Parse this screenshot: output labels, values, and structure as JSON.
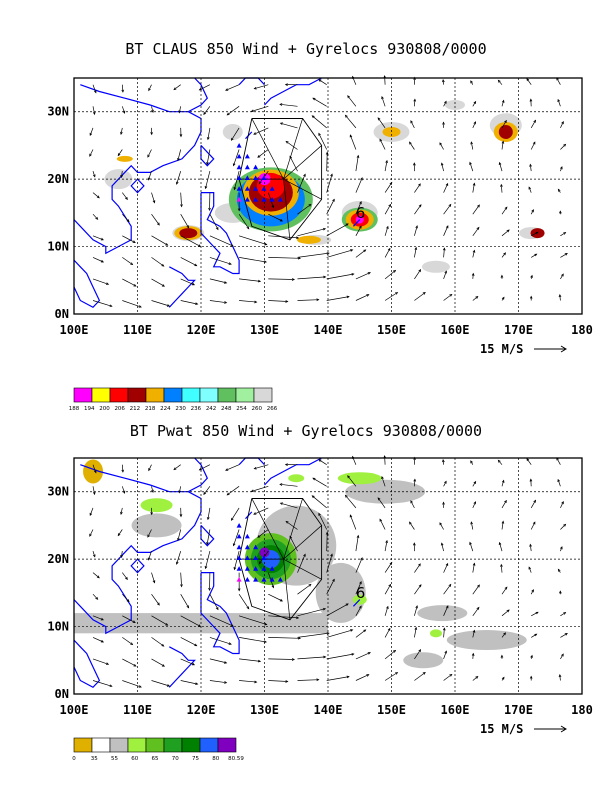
{
  "panels": [
    {
      "id": "claus",
      "title": "BT CLAUS 850 Wind + Gyrelocs 930808/0000",
      "colorbar": {
        "labels": [
          "188",
          "194",
          "200",
          "206",
          "212",
          "218",
          "224",
          "230",
          "236",
          "242",
          "248",
          "254",
          "260",
          "266"
        ],
        "colors": [
          "#ff00ff",
          "#ffff00",
          "#ff0000",
          "#a00000",
          "#f0b000",
          "#0080ff",
          "#40ffff",
          "#80ffff",
          "#60c060",
          "#a0f0a0",
          "#d8d8d8"
        ]
      }
    },
    {
      "id": "pwat",
      "title": "BT Pwat 850 Wind + Gyrelocs 930808/0000",
      "colorbar": {
        "labels": [
          "0",
          "35",
          "55",
          "60",
          "65",
          "70",
          "75",
          "80",
          "80.59"
        ],
        "colors": [
          "#e0b000",
          "#ffffff",
          "#c0c0c0",
          "#a0f040",
          "#60c020",
          "#20a020",
          "#008000",
          "#2060ff",
          "#8000c0"
        ]
      }
    }
  ],
  "map": {
    "lon_labels": [
      "100E",
      "110E",
      "120E",
      "130E",
      "140E",
      "150E",
      "160E",
      "170E",
      "180"
    ],
    "lat_labels": [
      "30N",
      "20N",
      "10N",
      "0N"
    ],
    "lon_range": [
      100,
      180
    ],
    "lat_range": [
      0,
      35
    ],
    "gridlines": "dashed every 10 degrees",
    "coastline_color": "#0000ff",
    "gyre_marker_color": "#0000ff",
    "typhoon_symbol": "6"
  },
  "wind_scale": {
    "label": "15 M/S"
  }
}
